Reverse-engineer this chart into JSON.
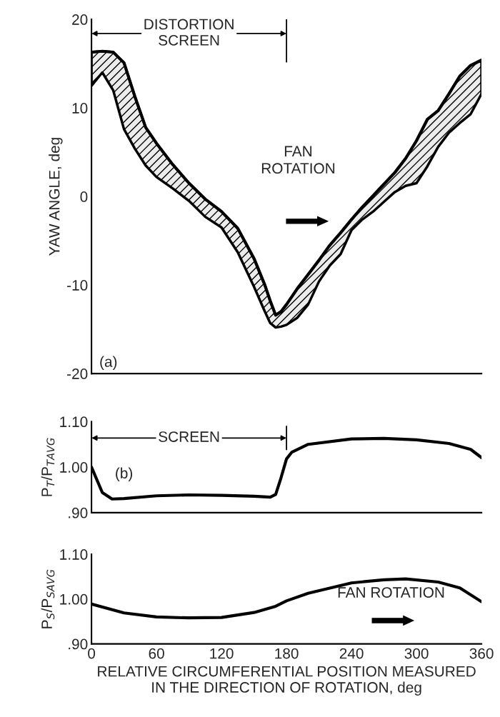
{
  "chart_data": [
    {
      "type": "line",
      "ylabel": "YAW ANGLE, deg",
      "xlim": [
        0,
        360
      ],
      "ylim": [
        -20,
        20
      ],
      "xticks": [
        0,
        60,
        120,
        180,
        240,
        300,
        360
      ],
      "yticks": [
        -20,
        -10,
        0,
        10,
        20
      ],
      "tick_labels": "y",
      "series": [
        {
          "type": "line",
          "color": "#000000",
          "x": [
            0,
            10,
            20,
            30,
            40,
            50,
            60,
            75,
            90,
            105,
            120,
            135,
            150,
            160,
            165,
            170,
            175,
            180,
            190,
            200,
            210,
            220,
            230,
            240,
            250,
            260,
            270,
            280,
            290,
            300,
            310,
            320,
            330,
            340,
            350,
            360
          ],
          "values": [
            16.3,
            16.4,
            16.3,
            15.1,
            11.3,
            7.8,
            6.0,
            3.6,
            1.5,
            -0.3,
            -1.7,
            -3.6,
            -7.0,
            -10.0,
            -11.8,
            -13.4,
            -13.0,
            -12.2,
            -10.4,
            -8.8,
            -7.2,
            -5.5,
            -4.1,
            -2.6,
            -1.2,
            0.1,
            1.4,
            2.7,
            4.3,
            6.3,
            8.7,
            9.7,
            11.6,
            13.6,
            14.8,
            15.4
          ],
          "upper": [
            16.3,
            16.4,
            16.3,
            15.1,
            11.3,
            7.8,
            6.0,
            3.6,
            1.5,
            -0.3,
            -1.7,
            -3.6,
            -7.0,
            -10.0,
            -11.8,
            -13.4,
            -13.0,
            -12.2,
            -10.4,
            -8.8,
            -7.2,
            -5.5,
            -4.1,
            -2.6,
            -1.2,
            0.1,
            1.4,
            2.7,
            4.3,
            6.3,
            8.7,
            9.7,
            11.6,
            13.6,
            14.8,
            15.4
          ],
          "lower": [
            12.5,
            14.0,
            12.0,
            7.6,
            5.4,
            3.5,
            2.2,
            0.9,
            -0.5,
            -2.3,
            -3.5,
            -6.3,
            -10.2,
            -13.0,
            -14.3,
            -14.8,
            -14.7,
            -14.5,
            -13.7,
            -12.2,
            -9.6,
            -7.8,
            -6.5,
            -3.8,
            -2.6,
            -1.7,
            -0.6,
            0.5,
            1.2,
            1.5,
            3.4,
            5.6,
            7.2,
            8.3,
            9.3,
            11.6
          ]
        }
      ],
      "ref_lines": [
        {
          "axis": "x",
          "value": 180,
          "label": "DISTORTION\nSCREEN"
        }
      ],
      "annotations": [
        "FAN\nROTATION",
        "(a)"
      ]
    },
    {
      "type": "line",
      "ylabel": "P$_{T}$/P$_{TAVG}$",
      "xlim": [
        0,
        360
      ],
      "ylim": [
        0.9,
        1.1
      ],
      "xticks": [
        0,
        60,
        120,
        180,
        240,
        300,
        360
      ],
      "yticks": [
        {
          "value": 0.9,
          "label": ".90"
        },
        {
          "value": 1.0,
          "label": "1.00"
        },
        {
          "value": 1.1,
          "label": "1.10"
        }
      ],
      "tick_labels": "y",
      "series": [
        {
          "color": "#000000",
          "x": [
            0,
            10,
            19,
            30,
            60,
            90,
            120,
            150,
            165,
            170,
            175,
            180,
            185,
            200,
            240,
            270,
            300,
            330,
            350,
            360
          ],
          "values": [
            1.0,
            0.944,
            0.93,
            0.931,
            0.937,
            0.939,
            0.938,
            0.936,
            0.934,
            0.94,
            0.977,
            1.018,
            1.033,
            1.05,
            1.062,
            1.063,
            1.06,
            1.052,
            1.039,
            1.021
          ]
        }
      ],
      "ref_lines": [
        {
          "axis": "x",
          "value": 180,
          "label": "SCREEN"
        }
      ],
      "annotations": [
        "(b)"
      ]
    },
    {
      "type": "line",
      "ylabel": "P$_{S}$/P$_{SAVG}$",
      "xlabel": "RELATIVE CIRCUMFERENTIAL POSITION MEASURED\nIN THE DIRECTION OF ROTATION, deg",
      "xlim": [
        0,
        360
      ],
      "ylim": [
        0.9,
        1.1
      ],
      "xticks": [
        0,
        60,
        120,
        180,
        240,
        300,
        360
      ],
      "yticks": [
        {
          "value": 0.9,
          "label": ".90"
        },
        {
          "value": 1.0,
          "label": "1.00"
        },
        {
          "value": 1.1,
          "label": "1.10"
        }
      ],
      "series": [
        {
          "color": "#000000",
          "x": [
            0,
            30,
            60,
            90,
            120,
            150,
            170,
            180,
            200,
            240,
            270,
            290,
            320,
            340,
            360
          ],
          "values": [
            0.989,
            0.969,
            0.96,
            0.958,
            0.959,
            0.97,
            0.984,
            0.996,
            1.013,
            1.036,
            1.043,
            1.045,
            1.038,
            1.025,
            0.994
          ]
        }
      ],
      "annotations": [
        "FAN ROTATION"
      ]
    }
  ]
}
